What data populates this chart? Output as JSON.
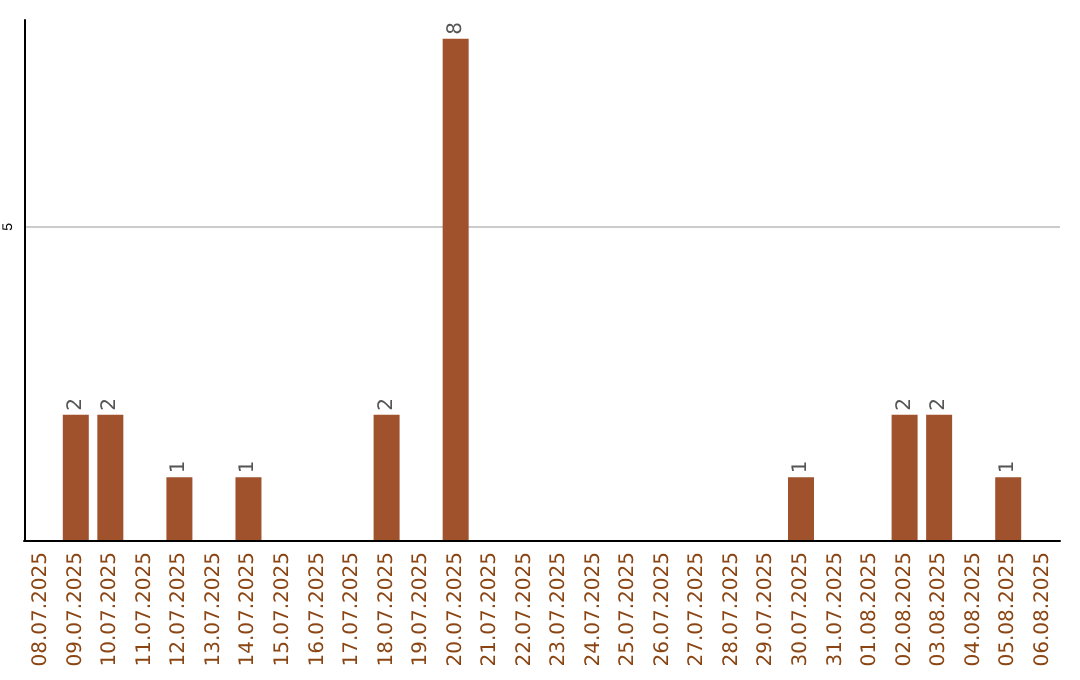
{
  "chart_data": {
    "type": "bar",
    "categories": [
      "08.07.2025",
      "09.07.2025",
      "10.07.2025",
      "11.07.2025",
      "12.07.2025",
      "13.07.2025",
      "14.07.2025",
      "15.07.2025",
      "16.07.2025",
      "17.07.2025",
      "18.07.2025",
      "19.07.2025",
      "20.07.2025",
      "21.07.2025",
      "22.07.2025",
      "23.07.2025",
      "24.07.2025",
      "25.07.2025",
      "26.07.2025",
      "27.07.2025",
      "28.07.2025",
      "29.07.2025",
      "30.07.2025",
      "31.07.2025",
      "01.08.2025",
      "02.08.2025",
      "03.08.2025",
      "04.08.2025",
      "05.08.2025",
      "06.08.2025"
    ],
    "values": [
      0,
      2,
      2,
      0,
      1,
      0,
      1,
      0,
      0,
      0,
      2,
      0,
      8,
      0,
      0,
      0,
      0,
      0,
      0,
      0,
      0,
      0,
      1,
      0,
      0,
      2,
      2,
      0,
      1,
      0
    ],
    "value_labels": [
      null,
      "2",
      "2",
      null,
      "1",
      null,
      "1",
      null,
      null,
      null,
      "2",
      null,
      "8",
      null,
      null,
      null,
      null,
      null,
      null,
      null,
      null,
      null,
      "1",
      null,
      null,
      "2",
      "2",
      null,
      "1",
      null
    ],
    "color": "#a0522d",
    "ylim": [
      0,
      8.3
    ],
    "yticks": [
      5
    ],
    "grid": "y"
  }
}
